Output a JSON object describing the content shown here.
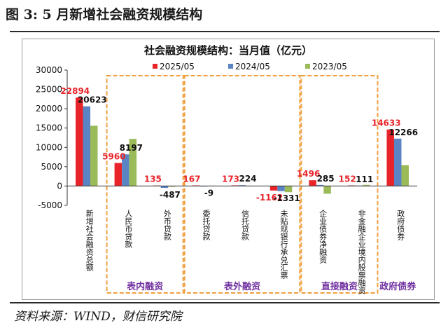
{
  "figure": {
    "title": "图 3:  5 月新增社会融资规模结构",
    "source": "资料来源：WIND，财信研究院"
  },
  "colors": {
    "series_2025": "#e8242a",
    "series_2024": "#5b84c4",
    "series_2023": "#9bbb59",
    "group_box": "#f0a040",
    "label_red": "#e8242a",
    "label_dark": "#111111",
    "group_label": "#7030a0"
  },
  "chart_data": {
    "type": "bar",
    "title": "社会融资规模结构：当月值（亿元）",
    "categories": [
      "新增社会融资总额",
      "人民币贷款",
      "外币贷款",
      "委托贷款",
      "信托贷款",
      "未贴现银行承兑汇票",
      "企业债券净融资",
      "非金融企业境内股票融资",
      "政府债券"
    ],
    "series": [
      {
        "name": "2025/05",
        "values": [
          22894,
          5960,
          135,
          167,
          173,
          -1162,
          1496,
          152,
          14633
        ]
      },
      {
        "name": "2024/05",
        "values": [
          20623,
          8197,
          -487,
          -9,
          224,
          -1331,
          285,
          111,
          12266
        ]
      },
      {
        "name": "2023/05",
        "values": [
          15600,
          12200,
          -200,
          100,
          100,
          -1600,
          -2000,
          300,
          5400
        ]
      }
    ],
    "ylim": [
      -5000,
      30000
    ],
    "yticks": [
      -5000,
      0,
      5000,
      10000,
      15000,
      20000,
      25000,
      30000
    ],
    "legend_position": "top",
    "grid": false,
    "data_labels": [
      {
        "category": 0,
        "series": 0,
        "text": "22894"
      },
      {
        "category": 0,
        "series": 1,
        "text": "20623"
      },
      {
        "category": 1,
        "series": 0,
        "text": "5960"
      },
      {
        "category": 1,
        "series": 1,
        "text": "8197"
      },
      {
        "category": 2,
        "series": 0,
        "text": "135"
      },
      {
        "category": 2,
        "series": 1,
        "text": "-487"
      },
      {
        "category": 3,
        "series": 0,
        "text": "167"
      },
      {
        "category": 3,
        "series": 1,
        "text": "-9"
      },
      {
        "category": 4,
        "series": 0,
        "text": "173"
      },
      {
        "category": 4,
        "series": 1,
        "text": "224"
      },
      {
        "category": 5,
        "series": 0,
        "text": "-1162"
      },
      {
        "category": 5,
        "series": 1,
        "text": "-1331"
      },
      {
        "category": 6,
        "series": 0,
        "text": "1496"
      },
      {
        "category": 6,
        "series": 1,
        "text": "285"
      },
      {
        "category": 7,
        "series": 0,
        "text": "152"
      },
      {
        "category": 7,
        "series": 1,
        "text": "111"
      },
      {
        "category": 8,
        "series": 0,
        "text": "14633"
      },
      {
        "category": 8,
        "series": 1,
        "text": "12266"
      }
    ],
    "groups": [
      {
        "label": "表内融资",
        "first": 1,
        "last": 2
      },
      {
        "label": "表外融资",
        "first": 3,
        "last": 5
      },
      {
        "label": "直接融资",
        "first": 6,
        "last": 7
      },
      {
        "label": "政府债券",
        "first": 8,
        "last": 8
      }
    ]
  }
}
